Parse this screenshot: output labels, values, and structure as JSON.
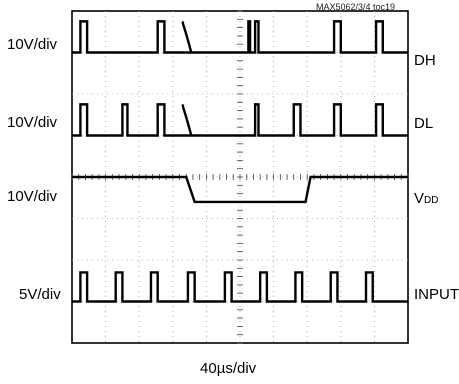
{
  "figure_id": "MAX5062/3/4 toc19",
  "x_axis": {
    "value": "40",
    "unit": "µs/div"
  },
  "channels": [
    {
      "name": "DH",
      "scale": "10V/div"
    },
    {
      "name": "DL",
      "scale": "10V/div"
    },
    {
      "name": "V",
      "name_subscript": "DD",
      "scale": "10V/div"
    },
    {
      "name": "INPUT",
      "scale": "5V/div"
    }
  ],
  "chart_data": {
    "type": "line",
    "title": "",
    "xlabel": "40µs/div",
    "grid": true,
    "divisions": {
      "x": 10,
      "y": 8
    },
    "series": [
      {
        "name": "DH",
        "scale": "10V/div",
        "baseline_div": 7.0,
        "high_div": 7.75,
        "pulses": [
          [
            0.25,
            0.45
          ],
          [
            2.55,
            2.75
          ],
          [
            5.25,
            5.3
          ],
          [
            5.45,
            5.55
          ],
          [
            7.8,
            8.0
          ],
          [
            9.05,
            9.25
          ]
        ],
        "decay": {
          "start": 3.3,
          "end": 3.55
        }
      },
      {
        "name": "DL",
        "scale": "10V/div",
        "baseline_div": 5.0,
        "high_div": 5.75,
        "pulses": [
          [
            0.25,
            0.45
          ],
          [
            1.5,
            1.65
          ],
          [
            2.55,
            2.75
          ],
          [
            5.45,
            5.55
          ],
          [
            6.6,
            6.8
          ],
          [
            7.8,
            8.0
          ],
          [
            9.05,
            9.25
          ]
        ],
        "decay": {
          "start": 3.3,
          "end": 3.55
        }
      },
      {
        "name": "VDD",
        "scale": "10V/div",
        "levels": [
          {
            "x": [
              0.0,
              3.4
            ],
            "div": 4.0
          },
          {
            "x": [
              3.65,
              6.95
            ],
            "div": 3.4
          },
          {
            "x": [
              7.1,
              10.0
            ],
            "div": 4.0
          }
        ]
      },
      {
        "name": "INPUT",
        "scale": "5V/div",
        "baseline_div": 1.0,
        "high_div": 1.7,
        "pulses": [
          [
            0.25,
            0.45
          ],
          [
            1.3,
            1.5
          ],
          [
            2.35,
            2.55
          ],
          [
            3.45,
            3.65
          ],
          [
            4.55,
            4.75
          ],
          [
            5.6,
            5.8
          ],
          [
            6.65,
            6.85
          ],
          [
            7.7,
            7.9
          ],
          [
            8.75,
            8.95
          ]
        ]
      }
    ]
  }
}
